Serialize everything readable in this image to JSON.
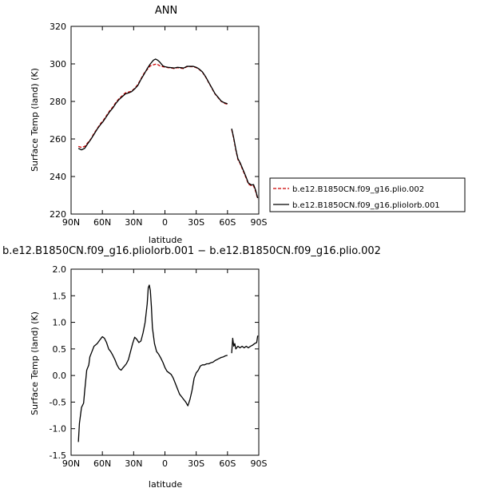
{
  "chart_data": [
    {
      "type": "line",
      "title": "ANN",
      "xlabel": "latitude",
      "ylabel": "Surface Temp (land) (K)",
      "xlim": [
        90,
        -90
      ],
      "ylim": [
        220,
        320
      ],
      "x_ticks": [
        90,
        60,
        30,
        0,
        -30,
        -60,
        -90
      ],
      "x_tick_labels": [
        "90N",
        "60N",
        "30N",
        "0",
        "30S",
        "60S",
        "90S"
      ],
      "y_ticks": [
        220,
        240,
        260,
        280,
        300,
        320
      ],
      "y_tick_labels": [
        "220",
        "240",
        "260",
        "280",
        "300",
        "320"
      ],
      "grid": false,
      "legend_position": "right",
      "series": [
        {
          "name": "b.e12.B1850CN.f09_g16.plio.002",
          "color": "#cc0000",
          "dash": "dashed",
          "segments": [
            [
              [
                83,
                256
              ],
              [
                80,
                255.5
              ],
              [
                77,
                256
              ],
              [
                74,
                258
              ],
              [
                71,
                260
              ],
              [
                68,
                263
              ],
              [
                65,
                265.5
              ],
              [
                62,
                268
              ],
              [
                59,
                270
              ],
              [
                56,
                272.5
              ],
              [
                53,
                275
              ],
              [
                50,
                277
              ],
              [
                47,
                279.5
              ],
              [
                44,
                281.5
              ],
              [
                41,
                283
              ],
              [
                38,
                284.5
              ],
              [
                35,
                285
              ],
              [
                32,
                285.5
              ],
              [
                29,
                287
              ],
              [
                26,
                289
              ],
              [
                23,
                292
              ],
              [
                20,
                295
              ],
              [
                17,
                297
              ],
              [
                14,
                299
              ],
              [
                11,
                299.5
              ],
              [
                8,
                300
              ],
              [
                5,
                299
              ],
              [
                2,
                298.5
              ],
              [
                0,
                298.3
              ],
              [
                -3,
                298
              ],
              [
                -6,
                297.8
              ],
              [
                -9,
                297.5
              ],
              [
                -12,
                298
              ],
              [
                -15,
                297.7
              ],
              [
                -18,
                297.5
              ],
              [
                -21,
                298.5
              ],
              [
                -24,
                298.5
              ],
              [
                -27,
                298.5
              ],
              [
                -30,
                298
              ],
              [
                -33,
                297
              ],
              [
                -36,
                295.5
              ],
              [
                -39,
                293
              ],
              [
                -42,
                290
              ],
              [
                -45,
                287
              ],
              [
                -48,
                284
              ],
              [
                -51,
                282
              ],
              [
                -54,
                280
              ],
              [
                -57,
                279
              ],
              [
                -60,
                278.5
              ]
            ],
            [
              [
                -64,
                265
              ],
              [
                -66,
                260
              ],
              [
                -68,
                254
              ],
              [
                -70,
                249
              ],
              [
                -72,
                247
              ],
              [
                -75,
                243
              ],
              [
                -78,
                239
              ],
              [
                -80,
                236
              ],
              [
                -83,
                235
              ],
              [
                -85,
                235
              ],
              [
                -87,
                232
              ],
              [
                -89,
                228
              ]
            ]
          ]
        },
        {
          "name": "b.e12.B1850CN.f09_g16.pliolorb.001",
          "color": "#000000",
          "dash": "solid",
          "segments": [
            [
              [
                83,
                255
              ],
              [
                80,
                254.2
              ],
              [
                77,
                255
              ],
              [
                74,
                257.5
              ],
              [
                71,
                259.8
              ],
              [
                68,
                262.5
              ],
              [
                65,
                265.2
              ],
              [
                62,
                267.5
              ],
              [
                59,
                269.5
              ],
              [
                56,
                272
              ],
              [
                53,
                274.5
              ],
              [
                50,
                276.5
              ],
              [
                47,
                279
              ],
              [
                44,
                281
              ],
              [
                41,
                282.5
              ],
              [
                38,
                284
              ],
              [
                35,
                284.5
              ],
              [
                32,
                285.2
              ],
              [
                29,
                286.7
              ],
              [
                26,
                288.5
              ],
              [
                23,
                291.7
              ],
              [
                20,
                294.5
              ],
              [
                17,
                297.5
              ],
              [
                14,
                300
              ],
              [
                11,
                302
              ],
              [
                9,
                302.6
              ],
              [
                7,
                302
              ],
              [
                5,
                301
              ],
              [
                2,
                299
              ],
              [
                0,
                298.5
              ],
              [
                -3,
                298.2
              ],
              [
                -6,
                298
              ],
              [
                -9,
                297.8
              ],
              [
                -12,
                298.2
              ],
              [
                -15,
                298
              ],
              [
                -18,
                297.8
              ],
              [
                -21,
                298.7
              ],
              [
                -24,
                298.7
              ],
              [
                -27,
                298.7
              ],
              [
                -30,
                298.2
              ],
              [
                -33,
                297.2
              ],
              [
                -36,
                295.7
              ],
              [
                -39,
                293.2
              ],
              [
                -42,
                290.2
              ],
              [
                -45,
                287.2
              ],
              [
                -48,
                284.2
              ],
              [
                -51,
                282.2
              ],
              [
                -54,
                280.2
              ],
              [
                -57,
                279.3
              ],
              [
                -60,
                278.8
              ]
            ],
            [
              [
                -64,
                265.5
              ],
              [
                -66,
                260.5
              ],
              [
                -68,
                254.5
              ],
              [
                -70,
                249.5
              ],
              [
                -72,
                247.5
              ],
              [
                -75,
                243.5
              ],
              [
                -78,
                239.5
              ],
              [
                -80,
                236.5
              ],
              [
                -83,
                235.5
              ],
              [
                -85,
                235.7
              ],
              [
                -87,
                232.7
              ],
              [
                -89,
                228.5
              ]
            ]
          ]
        }
      ]
    },
    {
      "type": "line",
      "title": "b.e12.B1850CN.f09_g16.pliolorb.001 − b.e12.B1850CN.f09_g16.plio.002",
      "xlabel": "latitude",
      "ylabel": "Surface Temp (land) (K)",
      "xlim": [
        90,
        -90
      ],
      "ylim": [
        -1.5,
        2.0
      ],
      "x_ticks": [
        90,
        60,
        30,
        0,
        -30,
        -60,
        -90
      ],
      "x_tick_labels": [
        "90N",
        "60N",
        "30N",
        "0",
        "30S",
        "60S",
        "90S"
      ],
      "y_ticks": [
        -1.5,
        -1.0,
        -0.5,
        0.0,
        0.5,
        1.0,
        1.5,
        2.0
      ],
      "y_tick_labels": [
        "-1.5",
        "-1.0",
        "-0.5",
        "0.0",
        "0.5",
        "1.0",
        "1.5",
        "2.0"
      ],
      "grid": false,
      "series": [
        {
          "color": "#000000",
          "dash": "solid",
          "segments": [
            [
              [
                83,
                -1.25
              ],
              [
                82,
                -0.9
              ],
              [
                81,
                -0.75
              ],
              [
                80,
                -0.6
              ],
              [
                78,
                -0.52
              ],
              [
                77,
                -0.3
              ],
              [
                76,
                -0.1
              ],
              [
                75,
                0.1
              ],
              [
                73,
                0.2
              ],
              [
                72,
                0.35
              ],
              [
                70,
                0.45
              ],
              [
                68,
                0.55
              ],
              [
                65,
                0.6
              ],
              [
                62,
                0.68
              ],
              [
                60,
                0.73
              ],
              [
                58,
                0.7
              ],
              [
                56,
                0.62
              ],
              [
                54,
                0.5
              ],
              [
                52,
                0.45
              ],
              [
                50,
                0.38
              ],
              [
                48,
                0.3
              ],
              [
                46,
                0.2
              ],
              [
                44,
                0.13
              ],
              [
                42,
                0.1
              ],
              [
                40,
                0.15
              ],
              [
                37,
                0.22
              ],
              [
                35,
                0.3
              ],
              [
                33,
                0.45
              ],
              [
                31,
                0.6
              ],
              [
                29,
                0.72
              ],
              [
                27,
                0.68
              ],
              [
                25,
                0.62
              ],
              [
                23,
                0.65
              ],
              [
                21,
                0.8
              ],
              [
                19,
                1.0
              ],
              [
                17,
                1.35
              ],
              [
                16,
                1.65
              ],
              [
                15,
                1.7
              ],
              [
                14,
                1.6
              ],
              [
                13,
                1.3
              ],
              [
                12,
                0.9
              ],
              [
                10,
                0.6
              ],
              [
                8,
                0.45
              ],
              [
                6,
                0.4
              ],
              [
                4,
                0.33
              ],
              [
                2,
                0.25
              ],
              [
                0,
                0.15
              ],
              [
                -2,
                0.08
              ],
              [
                -4,
                0.05
              ],
              [
                -6,
                0.02
              ],
              [
                -8,
                -0.05
              ],
              [
                -10,
                -0.15
              ],
              [
                -12,
                -0.25
              ],
              [
                -14,
                -0.35
              ],
              [
                -16,
                -0.4
              ],
              [
                -18,
                -0.45
              ],
              [
                -20,
                -0.5
              ],
              [
                -22,
                -0.57
              ],
              [
                -24,
                -0.45
              ],
              [
                -26,
                -0.28
              ],
              [
                -28,
                -0.05
              ],
              [
                -30,
                0.05
              ],
              [
                -32,
                0.1
              ],
              [
                -34,
                0.18
              ],
              [
                -36,
                0.2
              ],
              [
                -38,
                0.2
              ],
              [
                -40,
                0.22
              ],
              [
                -42,
                0.22
              ],
              [
                -44,
                0.24
              ],
              [
                -46,
                0.25
              ],
              [
                -48,
                0.28
              ],
              [
                -50,
                0.3
              ],
              [
                -52,
                0.32
              ],
              [
                -54,
                0.34
              ],
              [
                -56,
                0.35
              ],
              [
                -58,
                0.37
              ],
              [
                -60,
                0.38
              ]
            ],
            [
              [
                -64,
                0.42
              ],
              [
                -65,
                0.7
              ],
              [
                -66,
                0.55
              ],
              [
                -67,
                0.6
              ],
              [
                -68,
                0.5
              ],
              [
                -70,
                0.55
              ],
              [
                -72,
                0.52
              ],
              [
                -74,
                0.55
              ],
              [
                -76,
                0.52
              ],
              [
                -78,
                0.55
              ],
              [
                -80,
                0.52
              ],
              [
                -82,
                0.55
              ],
              [
                -84,
                0.57
              ],
              [
                -86,
                0.6
              ],
              [
                -88,
                0.62
              ],
              [
                -89,
                0.75
              ]
            ]
          ]
        }
      ]
    }
  ],
  "legend": {
    "entries": [
      {
        "label": "b.e12.B1850CN.f09_g16.plio.002",
        "color": "#cc0000",
        "dash": "dashed"
      },
      {
        "label": "b.e12.B1850CN.f09_g16.pliolorb.001",
        "color": "#000000",
        "dash": "solid"
      }
    ]
  }
}
